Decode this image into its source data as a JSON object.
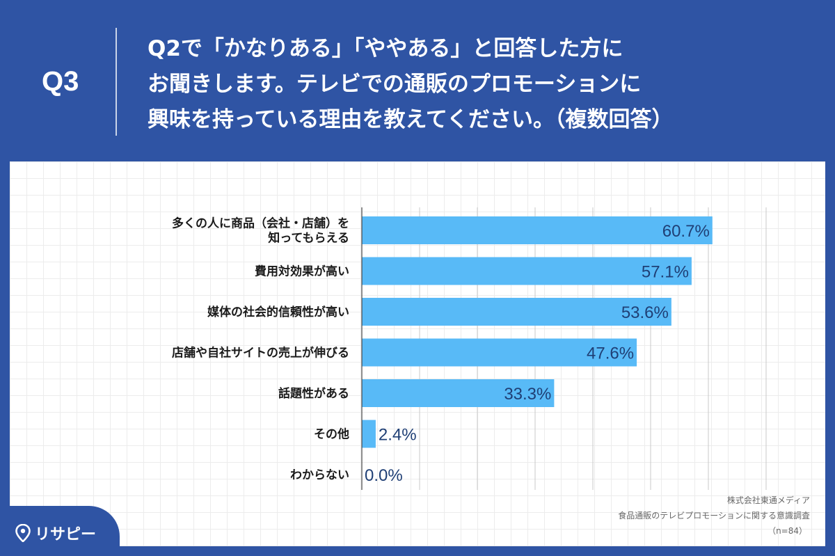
{
  "header": {
    "q_label": "Q3",
    "question_lines": [
      "Q2で「かなりある」「ややある」と回答した方に",
      "お聞きします。テレビでの通販のプロモーションに",
      "興味を持っている理由を教えてください。（複数回答）"
    ]
  },
  "chart_data": {
    "type": "bar",
    "orientation": "horizontal",
    "categories": [
      "多くの人に商品（会社・店舗）を\n知ってもらえる",
      "費用対効果が高い",
      "媒体の社会的信頼性が高い",
      "店舗や自社サイトの売上が伸びる",
      "話題性がある",
      "その他",
      "わからない"
    ],
    "values": [
      60.7,
      57.1,
      53.6,
      47.6,
      33.3,
      2.4,
      0.0
    ],
    "value_labels": [
      "60.7%",
      "57.1%",
      "53.6%",
      "47.6%",
      "33.3%",
      "2.4%",
      "0.0%"
    ],
    "xlim": [
      0,
      70
    ],
    "grid": true,
    "bar_color": "#58baf7",
    "label_color": "#1f3f75"
  },
  "source": {
    "company": "株式会社東通メディア",
    "survey": "食品通販のテレビプロモーションに関する意識調査",
    "n": "（n=84）"
  },
  "logo": {
    "text": "リサピー"
  },
  "colors": {
    "background": "#2f54a4",
    "panel": "#ffffff"
  }
}
